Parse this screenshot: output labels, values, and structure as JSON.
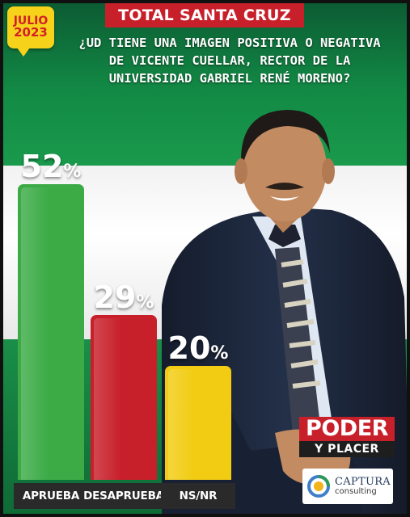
{
  "badge": {
    "month": "JULIO",
    "year": "2023"
  },
  "region": "TOTAL SANTA CRUZ",
  "question": "¿UD TIENE UNA IMAGEN POSITIVA O NEGATIVA DE VICENTE CUELLAR, RECTOR DE LA UNIVERSIDAD GABRIEL RENÉ MORENO?",
  "colors": {
    "approve": "#3cab46",
    "disapprove": "#c8202a",
    "nsnr": "#f2cc12",
    "label_bg": "#2a2a2a"
  },
  "chart_data": {
    "type": "bar",
    "title": "¿UD TIENE UNA IMAGEN POSITIVA O NEGATIVA DE VICENTE CUELLAR, RECTOR DE LA UNIVERSIDAD GABRIEL RENÉ MORENO?",
    "categories": [
      "APRUEBA",
      "DESAPRUEBA",
      "NS/NR"
    ],
    "values": [
      52,
      29,
      20
    ],
    "value_labels": [
      "52",
      "29",
      "20"
    ],
    "unit": "%",
    "ylim": [
      0,
      52
    ],
    "grid": false,
    "legend": "none"
  },
  "logos": {
    "brand_line1": "PODER",
    "brand_line2": "Y PLACER",
    "partner_line1": "CAPTURA",
    "partner_line2": "consulting"
  }
}
